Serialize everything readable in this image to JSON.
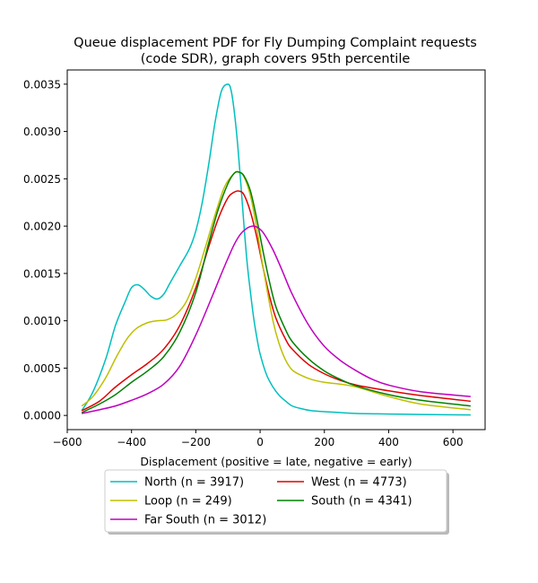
{
  "chart_data": {
    "type": "line",
    "title_line1": "Queue displacement PDF for Fly Dumping Complaint  requests",
    "title_line2": "(code SDR), graph covers 95th percentile",
    "xlabel": "Displacement (positive = late, negative = early)",
    "ylabel": "",
    "xlim": [
      -600,
      700
    ],
    "ylim": [
      -0.00015,
      0.00365
    ],
    "xticks": [
      {
        "value": -600,
        "label": "−600"
      },
      {
        "value": -400,
        "label": "−400"
      },
      {
        "value": -200,
        "label": "−200"
      },
      {
        "value": 0,
        "label": "0"
      },
      {
        "value": 200,
        "label": "200"
      },
      {
        "value": 400,
        "label": "400"
      },
      {
        "value": 600,
        "label": "600"
      }
    ],
    "yticks": [
      {
        "value": 0.0,
        "label": "0.0000"
      },
      {
        "value": 0.0005,
        "label": "0.0005"
      },
      {
        "value": 0.001,
        "label": "0.0010"
      },
      {
        "value": 0.0015,
        "label": "0.0015"
      },
      {
        "value": 0.002,
        "label": "0.0020"
      },
      {
        "value": 0.0025,
        "label": "0.0025"
      },
      {
        "value": 0.003,
        "label": "0.0030"
      },
      {
        "value": 0.0035,
        "label": "0.0035"
      }
    ],
    "grid": false,
    "legend_position": "bottom-center",
    "series": [
      {
        "name": "North (n = 3917)",
        "color": "#00bfbf",
        "x": [
          -555,
          -520,
          -480,
          -450,
          -420,
          -400,
          -380,
          -360,
          -340,
          -320,
          -300,
          -280,
          -250,
          -220,
          -200,
          -180,
          -160,
          -140,
          -120,
          -100,
          -90,
          -80,
          -70,
          -60,
          -50,
          -40,
          -30,
          -20,
          -10,
          0,
          20,
          40,
          60,
          80,
          100,
          130,
          160,
          200,
          250,
          300,
          400,
          500,
          655
        ],
        "y": [
          5e-05,
          0.00025,
          0.0006,
          0.00095,
          0.0012,
          0.00135,
          0.00138,
          0.00133,
          0.00126,
          0.00123,
          0.00128,
          0.0014,
          0.00158,
          0.00176,
          0.00195,
          0.00225,
          0.00265,
          0.0031,
          0.00343,
          0.0035,
          0.00343,
          0.0032,
          0.00287,
          0.00245,
          0.002,
          0.0016,
          0.0013,
          0.00103,
          0.00082,
          0.00065,
          0.00043,
          0.0003,
          0.00021,
          0.00015,
          0.0001,
          7e-05,
          5e-05,
          4e-05,
          3e-05,
          2e-05,
          1.5e-05,
          1e-05,
          5e-06
        ]
      },
      {
        "name": "West (n = 4773)",
        "color": "#e00000",
        "x": [
          -555,
          -500,
          -450,
          -400,
          -350,
          -300,
          -250,
          -200,
          -160,
          -130,
          -100,
          -80,
          -65,
          -50,
          -30,
          -10,
          10,
          30,
          50,
          80,
          100,
          150,
          200,
          250,
          300,
          400,
          500,
          655
        ],
        "y": [
          5e-05,
          0.00015,
          0.0003,
          0.00043,
          0.00055,
          0.0007,
          0.00095,
          0.00135,
          0.00178,
          0.00208,
          0.0023,
          0.00236,
          0.00237,
          0.00233,
          0.00215,
          0.00188,
          0.00155,
          0.00125,
          0.00102,
          0.0008,
          0.0007,
          0.00054,
          0.00044,
          0.00037,
          0.00032,
          0.00026,
          0.00021,
          0.00015
        ]
      },
      {
        "name": "Loop (n = 249)",
        "color": "#bfbf00",
        "x": [
          -555,
          -520,
          -480,
          -450,
          -420,
          -400,
          -380,
          -350,
          -320,
          -290,
          -260,
          -230,
          -200,
          -170,
          -140,
          -110,
          -80,
          -65,
          -50,
          -30,
          -10,
          10,
          40,
          60,
          80,
          100,
          130,
          160,
          200,
          250,
          300,
          350,
          400,
          500,
          655
        ],
        "y": [
          0.0001,
          0.0002,
          0.0004,
          0.0006,
          0.00078,
          0.00087,
          0.00093,
          0.00098,
          0.001,
          0.00101,
          0.00107,
          0.0012,
          0.00145,
          0.00178,
          0.00212,
          0.00242,
          0.00256,
          0.00257,
          0.00252,
          0.00232,
          0.00197,
          0.00155,
          0.001,
          0.00075,
          0.00058,
          0.00048,
          0.00042,
          0.00038,
          0.00035,
          0.00033,
          0.0003,
          0.00025,
          0.0002,
          0.00012,
          6e-05
        ]
      },
      {
        "name": "South (n = 4341)",
        "color": "#008000",
        "x": [
          -555,
          -500,
          -450,
          -400,
          -350,
          -300,
          -250,
          -200,
          -160,
          -130,
          -100,
          -80,
          -65,
          -50,
          -30,
          -10,
          10,
          30,
          50,
          80,
          100,
          150,
          200,
          250,
          300,
          400,
          500,
          655
        ],
        "y": [
          3e-05,
          0.00012,
          0.00022,
          0.00035,
          0.00047,
          0.00062,
          0.00088,
          0.0013,
          0.00182,
          0.00218,
          0.00245,
          0.00256,
          0.00257,
          0.00253,
          0.00237,
          0.00207,
          0.00172,
          0.0014,
          0.00114,
          0.0009,
          0.00078,
          0.0006,
          0.00047,
          0.00038,
          0.00031,
          0.00022,
          0.00016,
          0.0001
        ]
      },
      {
        "name": "Far South (n = 3012)",
        "color": "#bf00bf",
        "x": [
          -555,
          -500,
          -450,
          -400,
          -350,
          -300,
          -250,
          -200,
          -150,
          -120,
          -100,
          -80,
          -60,
          -40,
          -25,
          -10,
          10,
          40,
          70,
          100,
          150,
          200,
          250,
          300,
          350,
          400,
          500,
          655
        ],
        "y": [
          2e-05,
          6e-05,
          0.0001,
          0.00016,
          0.00023,
          0.00033,
          0.00052,
          0.00085,
          0.00125,
          0.0015,
          0.00166,
          0.00181,
          0.00192,
          0.00198,
          0.002,
          0.00199,
          0.00193,
          0.00175,
          0.00152,
          0.00128,
          0.00096,
          0.00073,
          0.00058,
          0.00047,
          0.00038,
          0.00032,
          0.00025,
          0.0002
        ]
      }
    ]
  }
}
